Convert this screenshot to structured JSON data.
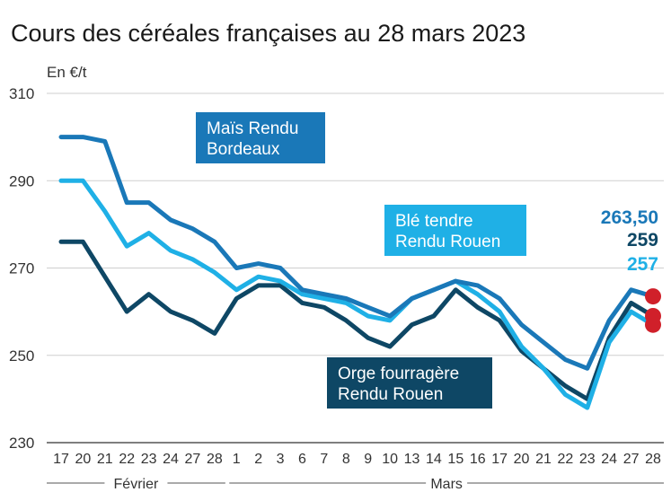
{
  "title": "Cours des céréales françaises au 28 mars 2023",
  "chart_data": {
    "type": "line",
    "title": "Cours des céréales françaises au 28 mars 2023",
    "ylabel": "En €/t",
    "xlabel": "",
    "ylim": [
      230,
      310
    ],
    "yticks": [
      230,
      250,
      270,
      290,
      310
    ],
    "grid": "horizontal",
    "categories": [
      "17",
      "20",
      "21",
      "22",
      "23",
      "24",
      "27",
      "28",
      "1",
      "2",
      "3",
      "6",
      "7",
      "8",
      "9",
      "10",
      "13",
      "14",
      "15",
      "16",
      "17",
      "20",
      "21",
      "22",
      "23",
      "24",
      "27",
      "28"
    ],
    "months": [
      {
        "label": "Février",
        "start": 0,
        "end": 7
      },
      {
        "label": "Mars",
        "start": 8,
        "end": 27
      }
    ],
    "series": [
      {
        "name": "Maïs Rendu Bordeaux",
        "color": "#1a78b8",
        "end_label": "263,50",
        "values": [
          300,
          300,
          299,
          285,
          285,
          281,
          279,
          276,
          270,
          271,
          270,
          265,
          264,
          263,
          261,
          259,
          263,
          265,
          267,
          266,
          263,
          257,
          253,
          249,
          247,
          258,
          265,
          263.5
        ]
      },
      {
        "name": "Blé tendre Rendu Rouen",
        "color": "#1fb0e6",
        "end_label": "257",
        "values": [
          290,
          290,
          283,
          275,
          278,
          274,
          272,
          269,
          265,
          268,
          267,
          264,
          263,
          262,
          259,
          258,
          263,
          265,
          267,
          264,
          260,
          252,
          247,
          241,
          238,
          253,
          260,
          257
        ]
      },
      {
        "name": "Orge fourragère Rendu Rouen",
        "color": "#0e4765",
        "end_label": "259",
        "values": [
          276,
          276,
          268,
          260,
          264,
          260,
          258,
          255,
          263,
          266,
          266,
          262,
          261,
          258,
          254,
          252,
          257,
          259,
          265,
          261,
          258,
          251,
          247,
          243,
          240,
          254,
          262,
          259
        ]
      }
    ],
    "endpoint_marker_color": "#d0202a"
  }
}
